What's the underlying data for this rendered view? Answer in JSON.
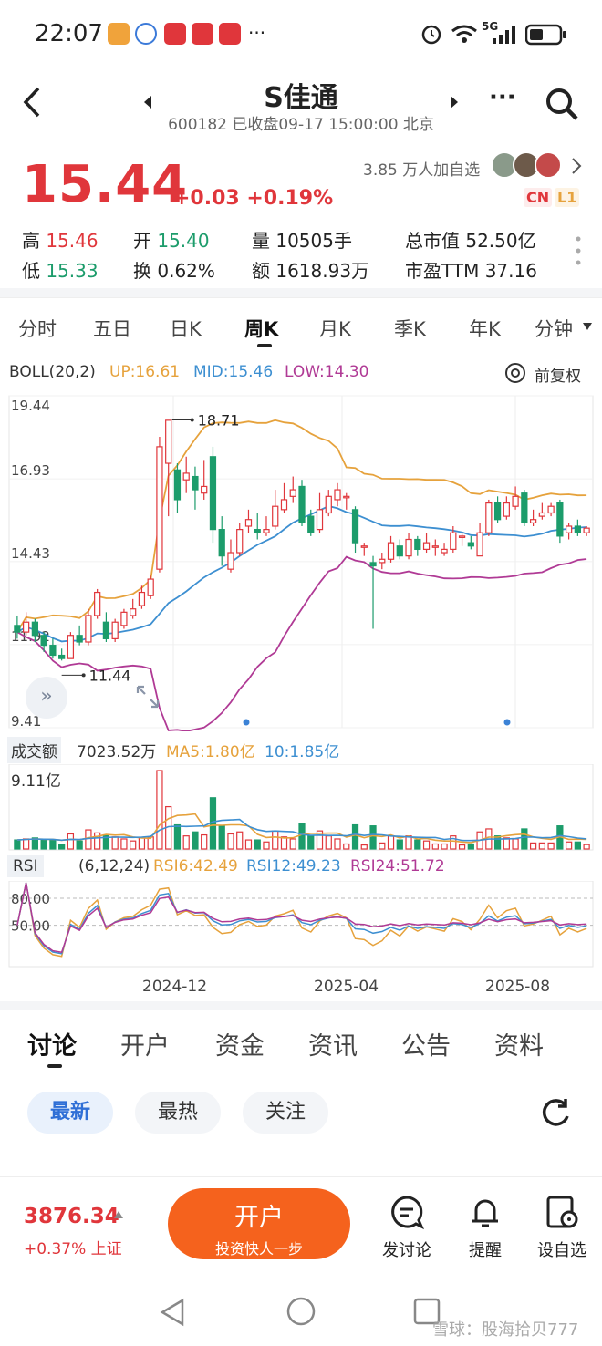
{
  "status": {
    "time": "22:07",
    "more": "···",
    "network": "5G"
  },
  "header": {
    "back_icon": "chevron-left",
    "title": "S佳通",
    "subtitle": "600182 已收盘09-17 15:00:00 北京",
    "more": "···"
  },
  "quote": {
    "price": "15.44",
    "change": "+0.03 +0.19%",
    "followers": "3.85 万人加自选",
    "badge_cn": "CN",
    "badge_l1": "L1",
    "high_label": "高",
    "high": "15.46",
    "open_label": "开",
    "open": "15.40",
    "volume": "量 10505手",
    "market_cap": "总市值 52.50亿",
    "low_label": "低",
    "low": "15.33",
    "turnover": "换 0.62%",
    "amount": "额 1618.93万",
    "pe": "市盈TTM 37.16"
  },
  "tabs": [
    "分时",
    "五日",
    "日K",
    "周K",
    "月K",
    "季K",
    "年K",
    "分钟"
  ],
  "active_tab": "周K",
  "indicators": {
    "boll_name": "BOLL(20,2)",
    "boll_up": "UP:16.61",
    "boll_mid": "MID:15.46",
    "boll_low": "LOW:14.30",
    "adjust": "前复权",
    "vol_name": "成交额",
    "vol_value": "7023.52万",
    "vol_ma5": "MA5:1.80亿",
    "vol_ma10": "10:1.85亿",
    "vol_max": "9.11亿",
    "rsi_name": "RSI",
    "rsi_params": "(6,12,24)",
    "rsi6": "RSI6:42.49",
    "rsi12": "RSI12:49.23",
    "rsi24": "RSI24:51.72"
  },
  "colors": {
    "up": "#e0363b",
    "down": "#1c9c6b",
    "boll_up": "#e6a23c",
    "boll_mid": "#3d8fd1",
    "boll_low": "#b03a95"
  },
  "chart_data": {
    "type": "candlestick",
    "y_ticks": [
      "19.44",
      "16.93",
      "14.43",
      "11.92",
      "9.41"
    ],
    "ylim": [
      9.41,
      19.44
    ],
    "max_label": "18.71",
    "min_label": "11.44",
    "x_ticks": [
      "2024-12",
      "2025-04",
      "2025-08"
    ],
    "candles": [
      [
        12.5,
        12.3,
        12.8,
        12.1
      ],
      [
        12.3,
        12.6,
        12.9,
        12.2
      ],
      [
        12.6,
        12.2,
        12.7,
        12.0
      ],
      [
        12.2,
        11.9,
        12.3,
        11.7
      ],
      [
        11.9,
        11.6,
        12.1,
        11.5
      ],
      [
        11.6,
        11.5,
        11.8,
        11.44
      ],
      [
        11.5,
        12.2,
        12.3,
        11.5
      ],
      [
        12.2,
        12.0,
        12.5,
        11.9
      ],
      [
        12.0,
        12.8,
        13.0,
        11.9
      ],
      [
        12.8,
        13.5,
        13.6,
        12.7
      ],
      [
        12.6,
        12.1,
        12.9,
        12.0
      ],
      [
        12.1,
        12.6,
        12.7,
        12.0
      ],
      [
        12.5,
        12.9,
        13.0,
        12.4
      ],
      [
        12.8,
        13.0,
        13.3,
        12.7
      ],
      [
        13.1,
        13.5,
        13.7,
        13.0
      ],
      [
        13.4,
        13.9,
        14.0,
        13.3
      ],
      [
        14.2,
        17.9,
        18.2,
        14.1
      ],
      [
        17.4,
        18.7,
        18.71,
        15.8
      ],
      [
        17.2,
        16.3,
        17.4,
        15.9
      ],
      [
        16.9,
        17.1,
        17.6,
        16.5
      ],
      [
        17.0,
        16.6,
        17.3,
        16.0
      ],
      [
        16.5,
        16.7,
        17.5,
        16.3
      ],
      [
        17.6,
        15.4,
        17.9,
        15.0
      ],
      [
        15.4,
        14.6,
        15.8,
        14.3
      ],
      [
        14.2,
        14.7,
        15.1,
        14.1
      ],
      [
        14.7,
        15.4,
        15.6,
        14.6
      ],
      [
        15.5,
        15.7,
        16.0,
        15.3
      ],
      [
        15.4,
        15.3,
        15.9,
        15.1
      ],
      [
        15.3,
        15.4,
        15.8,
        15.2
      ],
      [
        15.5,
        16.1,
        16.6,
        15.4
      ],
      [
        16.0,
        16.3,
        16.8,
        15.9
      ],
      [
        16.4,
        16.6,
        17.0,
        16.2
      ],
      [
        16.7,
        15.6,
        16.9,
        15.5
      ],
      [
        15.8,
        15.3,
        16.0,
        15.2
      ],
      [
        15.4,
        16.0,
        16.5,
        15.3
      ],
      [
        15.9,
        16.4,
        16.6,
        15.8
      ],
      [
        16.3,
        16.6,
        16.8,
        16.1
      ],
      [
        16.4,
        16.4,
        16.5,
        16.0
      ],
      [
        16.0,
        15.0,
        16.1,
        14.7
      ],
      [
        14.9,
        14.9,
        15.0,
        14.6
      ],
      [
        14.4,
        14.3,
        14.6,
        12.4
      ],
      [
        14.4,
        14.5,
        14.7,
        14.2
      ],
      [
        14.5,
        15.0,
        15.2,
        14.4
      ],
      [
        14.9,
        14.6,
        15.1,
        14.5
      ],
      [
        14.6,
        15.1,
        15.3,
        14.5
      ],
      [
        15.1,
        14.8,
        15.2,
        14.6
      ],
      [
        14.8,
        15.0,
        15.3,
        14.7
      ],
      [
        14.9,
        14.9,
        15.1,
        14.6
      ],
      [
        14.7,
        14.8,
        15.0,
        14.6
      ],
      [
        14.8,
        15.3,
        15.5,
        14.7
      ],
      [
        15.2,
        15.2,
        15.3,
        14.9
      ],
      [
        15.0,
        14.9,
        15.2,
        14.8
      ],
      [
        14.6,
        15.3,
        15.6,
        14.6
      ],
      [
        15.3,
        16.2,
        16.3,
        15.2
      ],
      [
        16.2,
        15.7,
        16.4,
        15.6
      ],
      [
        15.8,
        16.2,
        16.4,
        15.7
      ],
      [
        16.1,
        16.4,
        16.7,
        16.0
      ],
      [
        16.5,
        15.6,
        16.6,
        15.5
      ],
      [
        15.6,
        15.7,
        16.0,
        15.5
      ],
      [
        15.8,
        15.9,
        16.2,
        15.7
      ],
      [
        15.9,
        16.1,
        16.2,
        15.8
      ],
      [
        16.2,
        15.2,
        16.3,
        15.0
      ],
      [
        15.3,
        15.5,
        15.6,
        15.1
      ],
      [
        15.5,
        15.3,
        15.7,
        15.2
      ],
      [
        15.3,
        15.44,
        15.5,
        15.2
      ]
    ]
  },
  "bottom_tabs": [
    "讨论",
    "开户",
    "资金",
    "资讯",
    "公告",
    "资料"
  ],
  "pills": [
    "最新",
    "最热",
    "关注"
  ],
  "footer": {
    "index_value": "3876.34",
    "index_change": "+0.37% 上证",
    "open_btn": "开户",
    "open_sub": "投资快人一步",
    "discuss": "发讨论",
    "remind": "提醒",
    "watch": "设自选"
  },
  "watermark": "雪球：股海拾贝777"
}
